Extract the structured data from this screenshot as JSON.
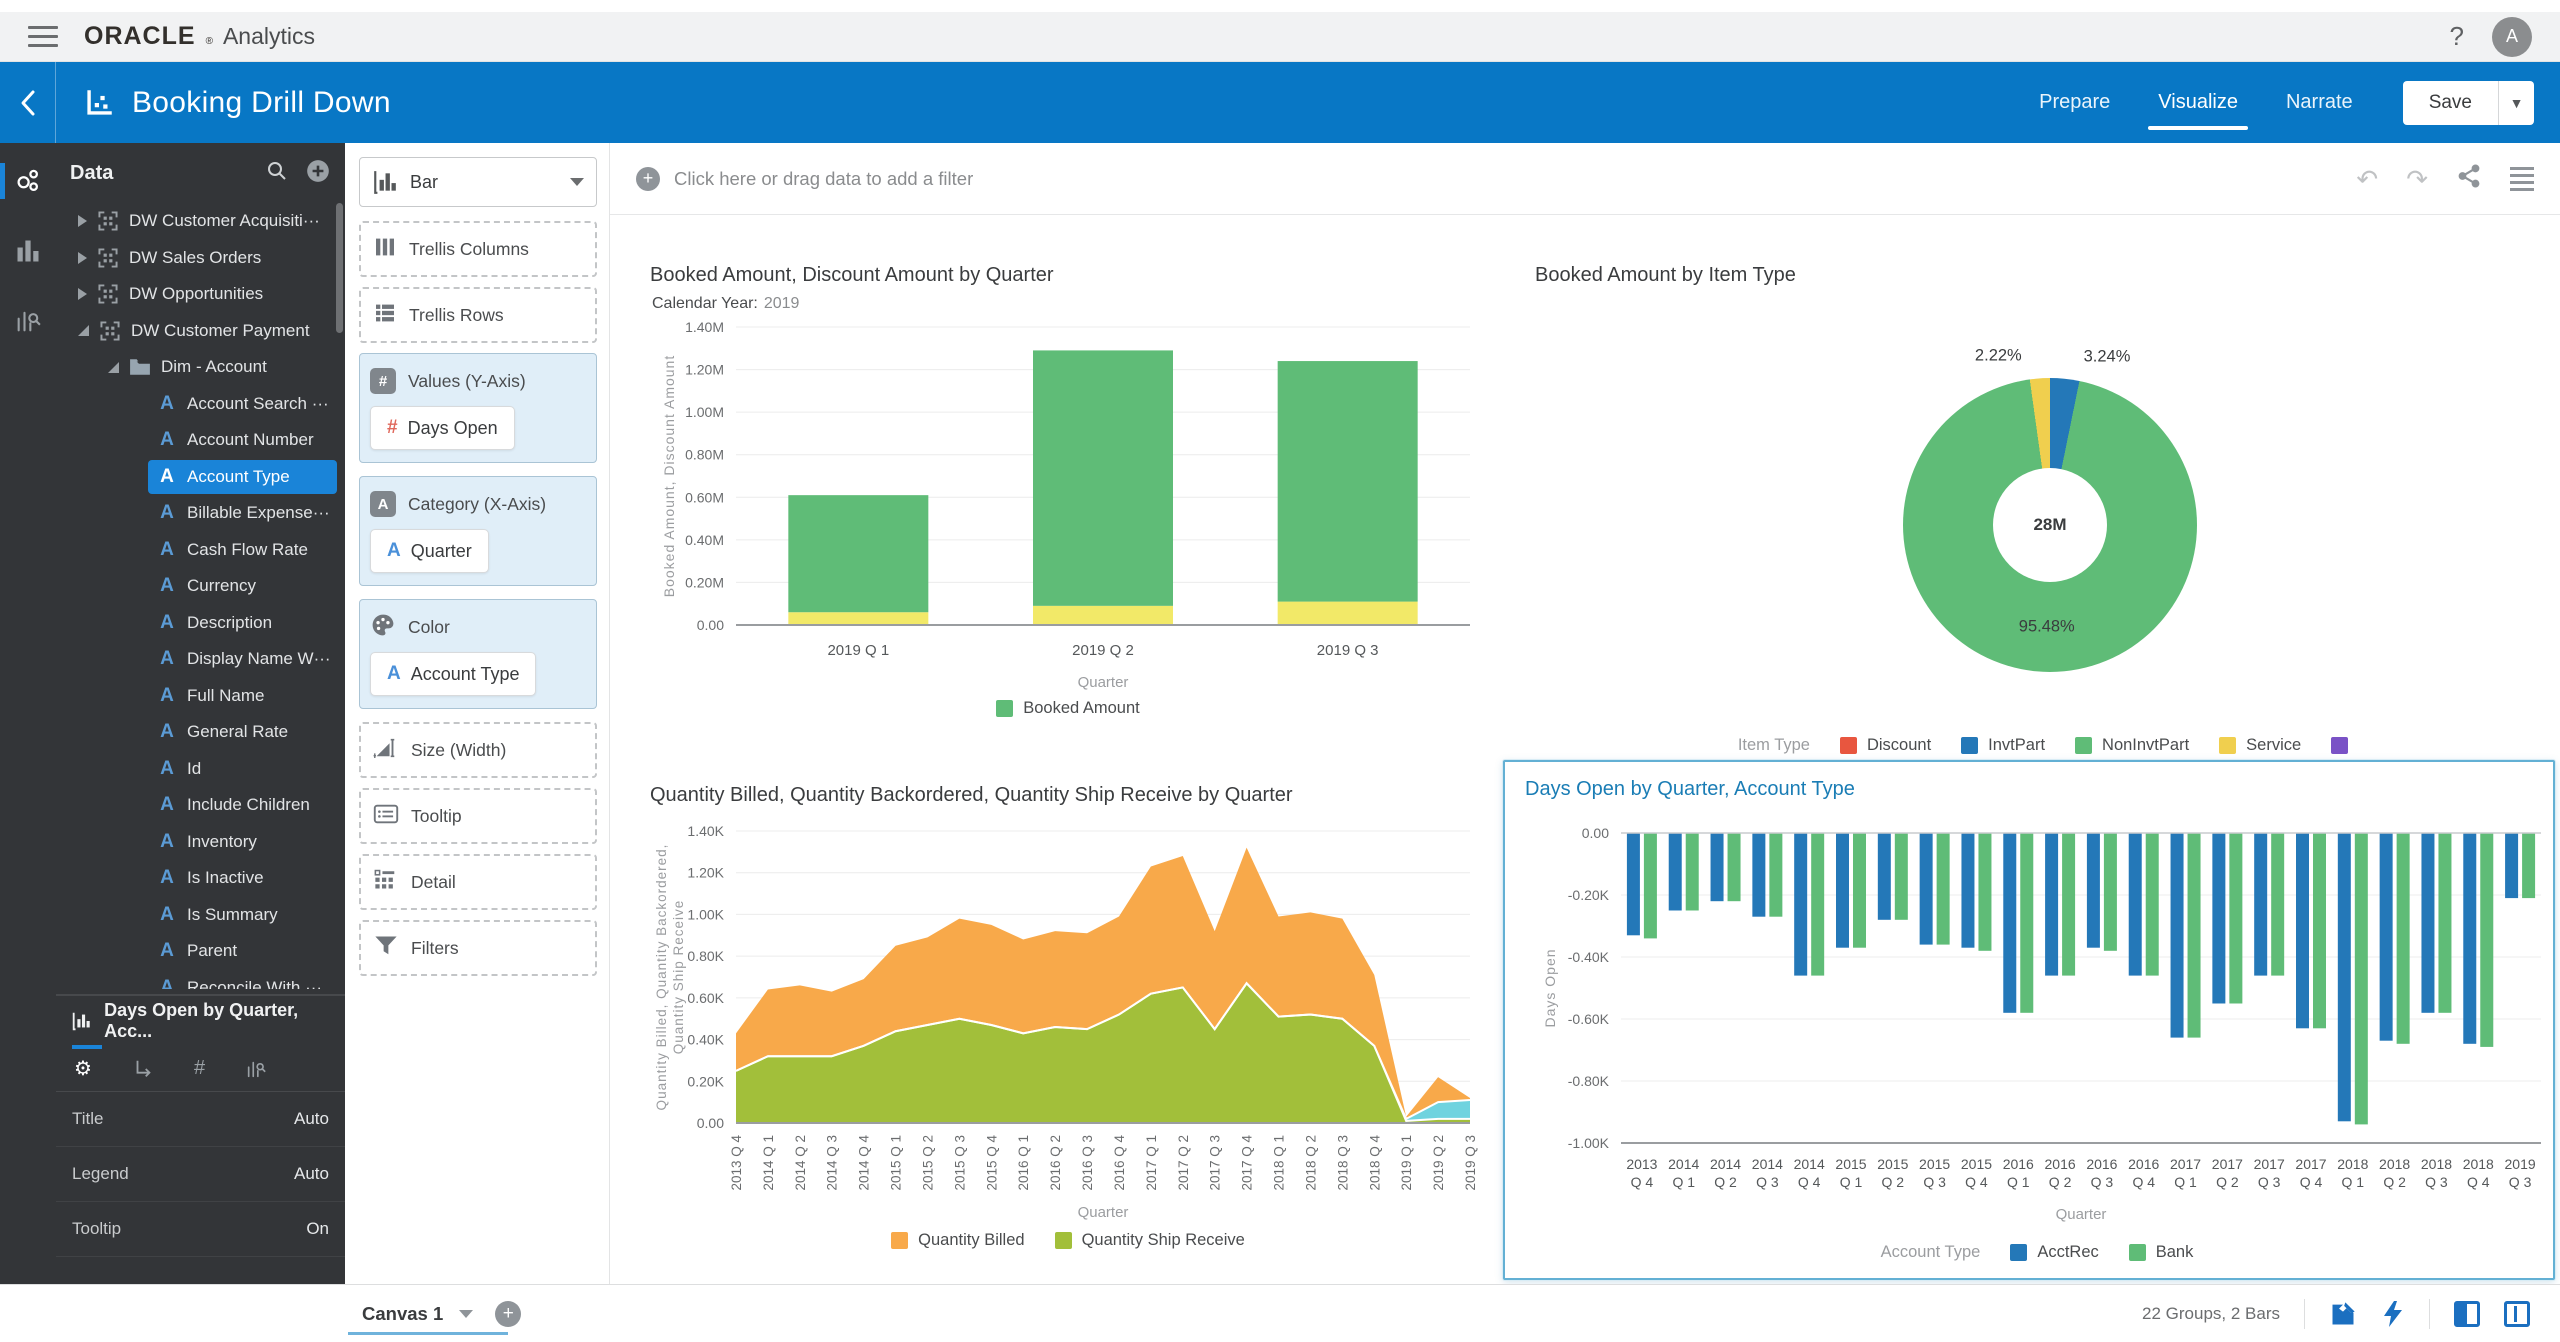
{
  "colors": {
    "header_blue": "#0877c5",
    "accent_blue": "#1a84d8",
    "selected_card_border": "#63b0d4",
    "sidebar_bg": "#333538"
  },
  "topbar": {
    "brand_bold": "ORACLE",
    "brand_reg": "®",
    "brand_rest": "Analytics",
    "help_label": "?",
    "avatar_initial": "A"
  },
  "header": {
    "title": "Booking Drill Down",
    "tabs": [
      {
        "label": "Prepare"
      },
      {
        "label": "Visualize"
      },
      {
        "label": "Narrate"
      }
    ],
    "active_tab": "Visualize",
    "save_label": "Save"
  },
  "sidebar": {
    "panel_title": "Data",
    "tree": [
      {
        "label": "DW Customer Acquisiti···",
        "level": 0,
        "icon": "dataset",
        "expandable": true,
        "expanded": false
      },
      {
        "label": "DW Sales Orders",
        "level": 0,
        "icon": "dataset",
        "expandable": true,
        "expanded": false
      },
      {
        "label": "DW Opportunities",
        "level": 0,
        "icon": "dataset",
        "expandable": true,
        "expanded": false
      },
      {
        "label": "DW Customer Payment",
        "level": 0,
        "icon": "dataset",
        "expandable": true,
        "expanded": true
      },
      {
        "label": "Dim - Account",
        "level": 1,
        "icon": "folder",
        "expandable": true,
        "expanded": true
      },
      {
        "label": "Account Search ···",
        "level": 2,
        "icon": "attr"
      },
      {
        "label": "Account Number",
        "level": 2,
        "icon": "attr"
      },
      {
        "label": "Account Type",
        "level": 2,
        "icon": "attr",
        "selected": true
      },
      {
        "label": "Billable Expense···",
        "level": 2,
        "icon": "attr"
      },
      {
        "label": "Cash Flow Rate",
        "level": 2,
        "icon": "attr"
      },
      {
        "label": "Currency",
        "level": 2,
        "icon": "attr"
      },
      {
        "label": "Description",
        "level": 2,
        "icon": "attr"
      },
      {
        "label": "Display Name W···",
        "level": 2,
        "icon": "attr"
      },
      {
        "label": "Full Name",
        "level": 2,
        "icon": "attr"
      },
      {
        "label": "General Rate",
        "level": 2,
        "icon": "attr"
      },
      {
        "label": "Id",
        "level": 2,
        "icon": "attr"
      },
      {
        "label": "Include Children",
        "level": 2,
        "icon": "attr"
      },
      {
        "label": "Inventory",
        "level": 2,
        "icon": "attr"
      },
      {
        "label": "Is Inactive",
        "level": 2,
        "icon": "attr"
      },
      {
        "label": "Is Summary",
        "level": 2,
        "icon": "attr"
      },
      {
        "label": "Parent",
        "level": 2,
        "icon": "attr"
      },
      {
        "label": "Reconcile With ···",
        "level": 2,
        "icon": "attr"
      }
    ],
    "properties": {
      "title": "Days Open by Quarter, Acc...",
      "rows": [
        {
          "label": "Title",
          "value": "Auto"
        },
        {
          "label": "Legend",
          "value": "Auto"
        },
        {
          "label": "Tooltip",
          "value": "On"
        }
      ]
    }
  },
  "grammar": {
    "chart_type": "Bar",
    "zones": [
      {
        "label": "Trellis Columns",
        "kind": "empty",
        "icon": "columns"
      },
      {
        "label": "Trellis Rows",
        "kind": "empty",
        "icon": "rows"
      },
      {
        "label": "Values (Y-Axis)",
        "kind": "filled",
        "icon": "hash",
        "pills": [
          {
            "label": "Days Open",
            "icon": "measure"
          }
        ]
      },
      {
        "label": "Category (X-Axis)",
        "kind": "filled",
        "icon": "abadge",
        "pills": [
          {
            "label": "Quarter",
            "icon": "attr"
          }
        ]
      },
      {
        "label": "Color",
        "kind": "filled",
        "icon": "palette",
        "pills": [
          {
            "label": "Account Type",
            "icon": "attr"
          }
        ]
      },
      {
        "label": "Size (Width)",
        "kind": "empty",
        "icon": "size"
      },
      {
        "label": "Tooltip",
        "kind": "empty",
        "icon": "tooltip"
      },
      {
        "label": "Detail",
        "kind": "empty",
        "icon": "detail"
      },
      {
        "label": "Filters",
        "kind": "empty",
        "icon": "filter"
      }
    ]
  },
  "filter_bar": {
    "placeholder": "Click here or drag data to add a filter"
  },
  "footer": {
    "canvas_tab": "Canvas 1",
    "status": "22 Groups, 2 Bars"
  },
  "chart_data": [
    {
      "id": "booked-discount-by-quarter",
      "type": "bar",
      "stacked": true,
      "title": "Booked Amount, Discount Amount by Quarter",
      "subtitle_label": "Calendar Year:",
      "subtitle_value": "2019",
      "categories": [
        "2019 Q 1",
        "2019 Q 2",
        "2019 Q 3"
      ],
      "series": [
        {
          "name": "Discount Amount",
          "color": "#f2e968",
          "values": [
            0.06,
            0.09,
            0.11
          ]
        },
        {
          "name": "Booked Amount",
          "color": "#5fbc77",
          "values": [
            0.55,
            1.2,
            1.13
          ]
        }
      ],
      "ylabel": "Booked Amount, Discount Amount",
      "xlabel": "Quarter",
      "yticks": [
        "0.00",
        "0.20M",
        "0.40M",
        "0.60M",
        "0.80M",
        "1.00M",
        "1.20M",
        "1.40M"
      ],
      "ymax": 1.4,
      "legend": [
        {
          "label": "Booked Amount",
          "color": "#5fbc77"
        }
      ]
    },
    {
      "id": "booked-by-item-type",
      "type": "pie",
      "title": "Booked Amount by Item Type",
      "center_label": "28M",
      "slices": [
        {
          "name": "Service",
          "pct": 2.22,
          "label": "2.22%",
          "color": "#f0cf4e"
        },
        {
          "name": "InvtPart",
          "pct": 3.24,
          "label": "3.24%",
          "color": "#2478b8"
        },
        {
          "name": "NonInvtPart",
          "pct": 95.48,
          "label": "95.48%",
          "color": "#5fbc77"
        }
      ],
      "legend_title": "Item Type",
      "legend": [
        {
          "label": "Discount",
          "color": "#e8563f"
        },
        {
          "label": "InvtPart",
          "color": "#2478b8"
        },
        {
          "label": "NonInvtPart",
          "color": "#5fbc77"
        },
        {
          "label": "Service",
          "color": "#f0cf4e"
        },
        {
          "label": "",
          "color": "#7a52c6"
        }
      ]
    },
    {
      "id": "quantities-by-quarter",
      "type": "area",
      "stacked": true,
      "title": "Quantity Billed, Quantity Backordered, Quantity Ship Receive by Quarter",
      "categories": [
        "2013 Q 4",
        "2014 Q 1",
        "2014 Q 2",
        "2014 Q 3",
        "2014 Q 4",
        "2015 Q 1",
        "2015 Q 2",
        "2015 Q 3",
        "2015 Q 4",
        "2016 Q 1",
        "2016 Q 2",
        "2016 Q 3",
        "2016 Q 4",
        "2017 Q 1",
        "2017 Q 2",
        "2017 Q 3",
        "2017 Q 4",
        "2018 Q 1",
        "2018 Q 2",
        "2018 Q 3",
        "2018 Q 4",
        "2019 Q 1",
        "2019 Q 2",
        "2019 Q 3"
      ],
      "series": [
        {
          "name": "Quantity Ship Receive",
          "color": "#a2bf3a",
          "values": [
            0.25,
            0.32,
            0.32,
            0.32,
            0.37,
            0.44,
            0.47,
            0.5,
            0.47,
            0.43,
            0.46,
            0.45,
            0.52,
            0.62,
            0.65,
            0.45,
            0.67,
            0.51,
            0.52,
            0.5,
            0.37,
            0.01,
            0.02,
            0.02
          ]
        },
        {
          "name": "Quantity Backordered",
          "color": "#6fd3df",
          "values": [
            0,
            0,
            0,
            0,
            0,
            0,
            0,
            0,
            0,
            0,
            0,
            0,
            0,
            0,
            0,
            0,
            0,
            0,
            0,
            0,
            0,
            0.01,
            0.08,
            0.09
          ]
        },
        {
          "name": "Quantity Billed",
          "color": "#f8a94a",
          "values": [
            0.18,
            0.32,
            0.34,
            0.31,
            0.32,
            0.41,
            0.42,
            0.48,
            0.48,
            0.45,
            0.46,
            0.46,
            0.47,
            0.61,
            0.63,
            0.47,
            0.65,
            0.48,
            0.49,
            0.48,
            0.34,
            0.01,
            0.12,
            0.01
          ]
        }
      ],
      "ylabel_lines": [
        "Quantity Billed, Quantity Backordered,",
        "Quantity Ship Receive"
      ],
      "xlabel": "Quarter",
      "yticks": [
        "0.00",
        "0.20K",
        "0.40K",
        "0.60K",
        "0.80K",
        "1.00K",
        "1.20K",
        "1.40K"
      ],
      "ymax": 1.4,
      "legend": [
        {
          "label": "Quantity Billed",
          "color": "#f8a94a"
        },
        {
          "label": "Quantity Ship Receive",
          "color": "#a2bf3a"
        }
      ]
    },
    {
      "id": "days-open-by-quarter-account-type",
      "type": "bar",
      "grouped": true,
      "selected": true,
      "title": "Days Open by Quarter, Account Type",
      "categories": [
        "2013 Q 4",
        "2014 Q 1",
        "2014 Q 2",
        "2014 Q 3",
        "2014 Q 4",
        "2015 Q 1",
        "2015 Q 2",
        "2015 Q 3",
        "2015 Q 4",
        "2016 Q 1",
        "2016 Q 2",
        "2016 Q 3",
        "2016 Q 4",
        "2017 Q 1",
        "2017 Q 2",
        "2017 Q 3",
        "2017 Q 4",
        "2018 Q 1",
        "2018 Q 2",
        "2018 Q 3",
        "2018 Q 4",
        "2019 Q 3"
      ],
      "series": [
        {
          "name": "AcctRec",
          "color": "#2478b8",
          "values": [
            -0.33,
            -0.25,
            -0.22,
            -0.27,
            -0.46,
            -0.37,
            -0.28,
            -0.36,
            -0.37,
            -0.58,
            -0.46,
            -0.37,
            -0.46,
            -0.66,
            -0.55,
            -0.46,
            -0.63,
            -0.93,
            -0.67,
            -0.58,
            -0.68,
            -0.21
          ]
        },
        {
          "name": "Bank",
          "color": "#5fbc77",
          "values": [
            -0.34,
            -0.25,
            -0.22,
            -0.27,
            -0.46,
            -0.37,
            -0.28,
            -0.36,
            -0.38,
            -0.58,
            -0.46,
            -0.38,
            -0.46,
            -0.66,
            -0.55,
            -0.46,
            -0.63,
            -0.94,
            -0.68,
            -0.58,
            -0.69,
            -0.21
          ]
        }
      ],
      "ylabel": "Days Open",
      "xlabel": "Quarter",
      "yticks": [
        "0.00",
        "-0.20K",
        "-0.40K",
        "-0.60K",
        "-0.80K",
        "-1.00K"
      ],
      "ymin": -1.0,
      "legend_title": "Account Type",
      "legend": [
        {
          "label": "AcctRec",
          "color": "#2478b8"
        },
        {
          "label": "Bank",
          "color": "#5fbc77"
        }
      ]
    }
  ]
}
